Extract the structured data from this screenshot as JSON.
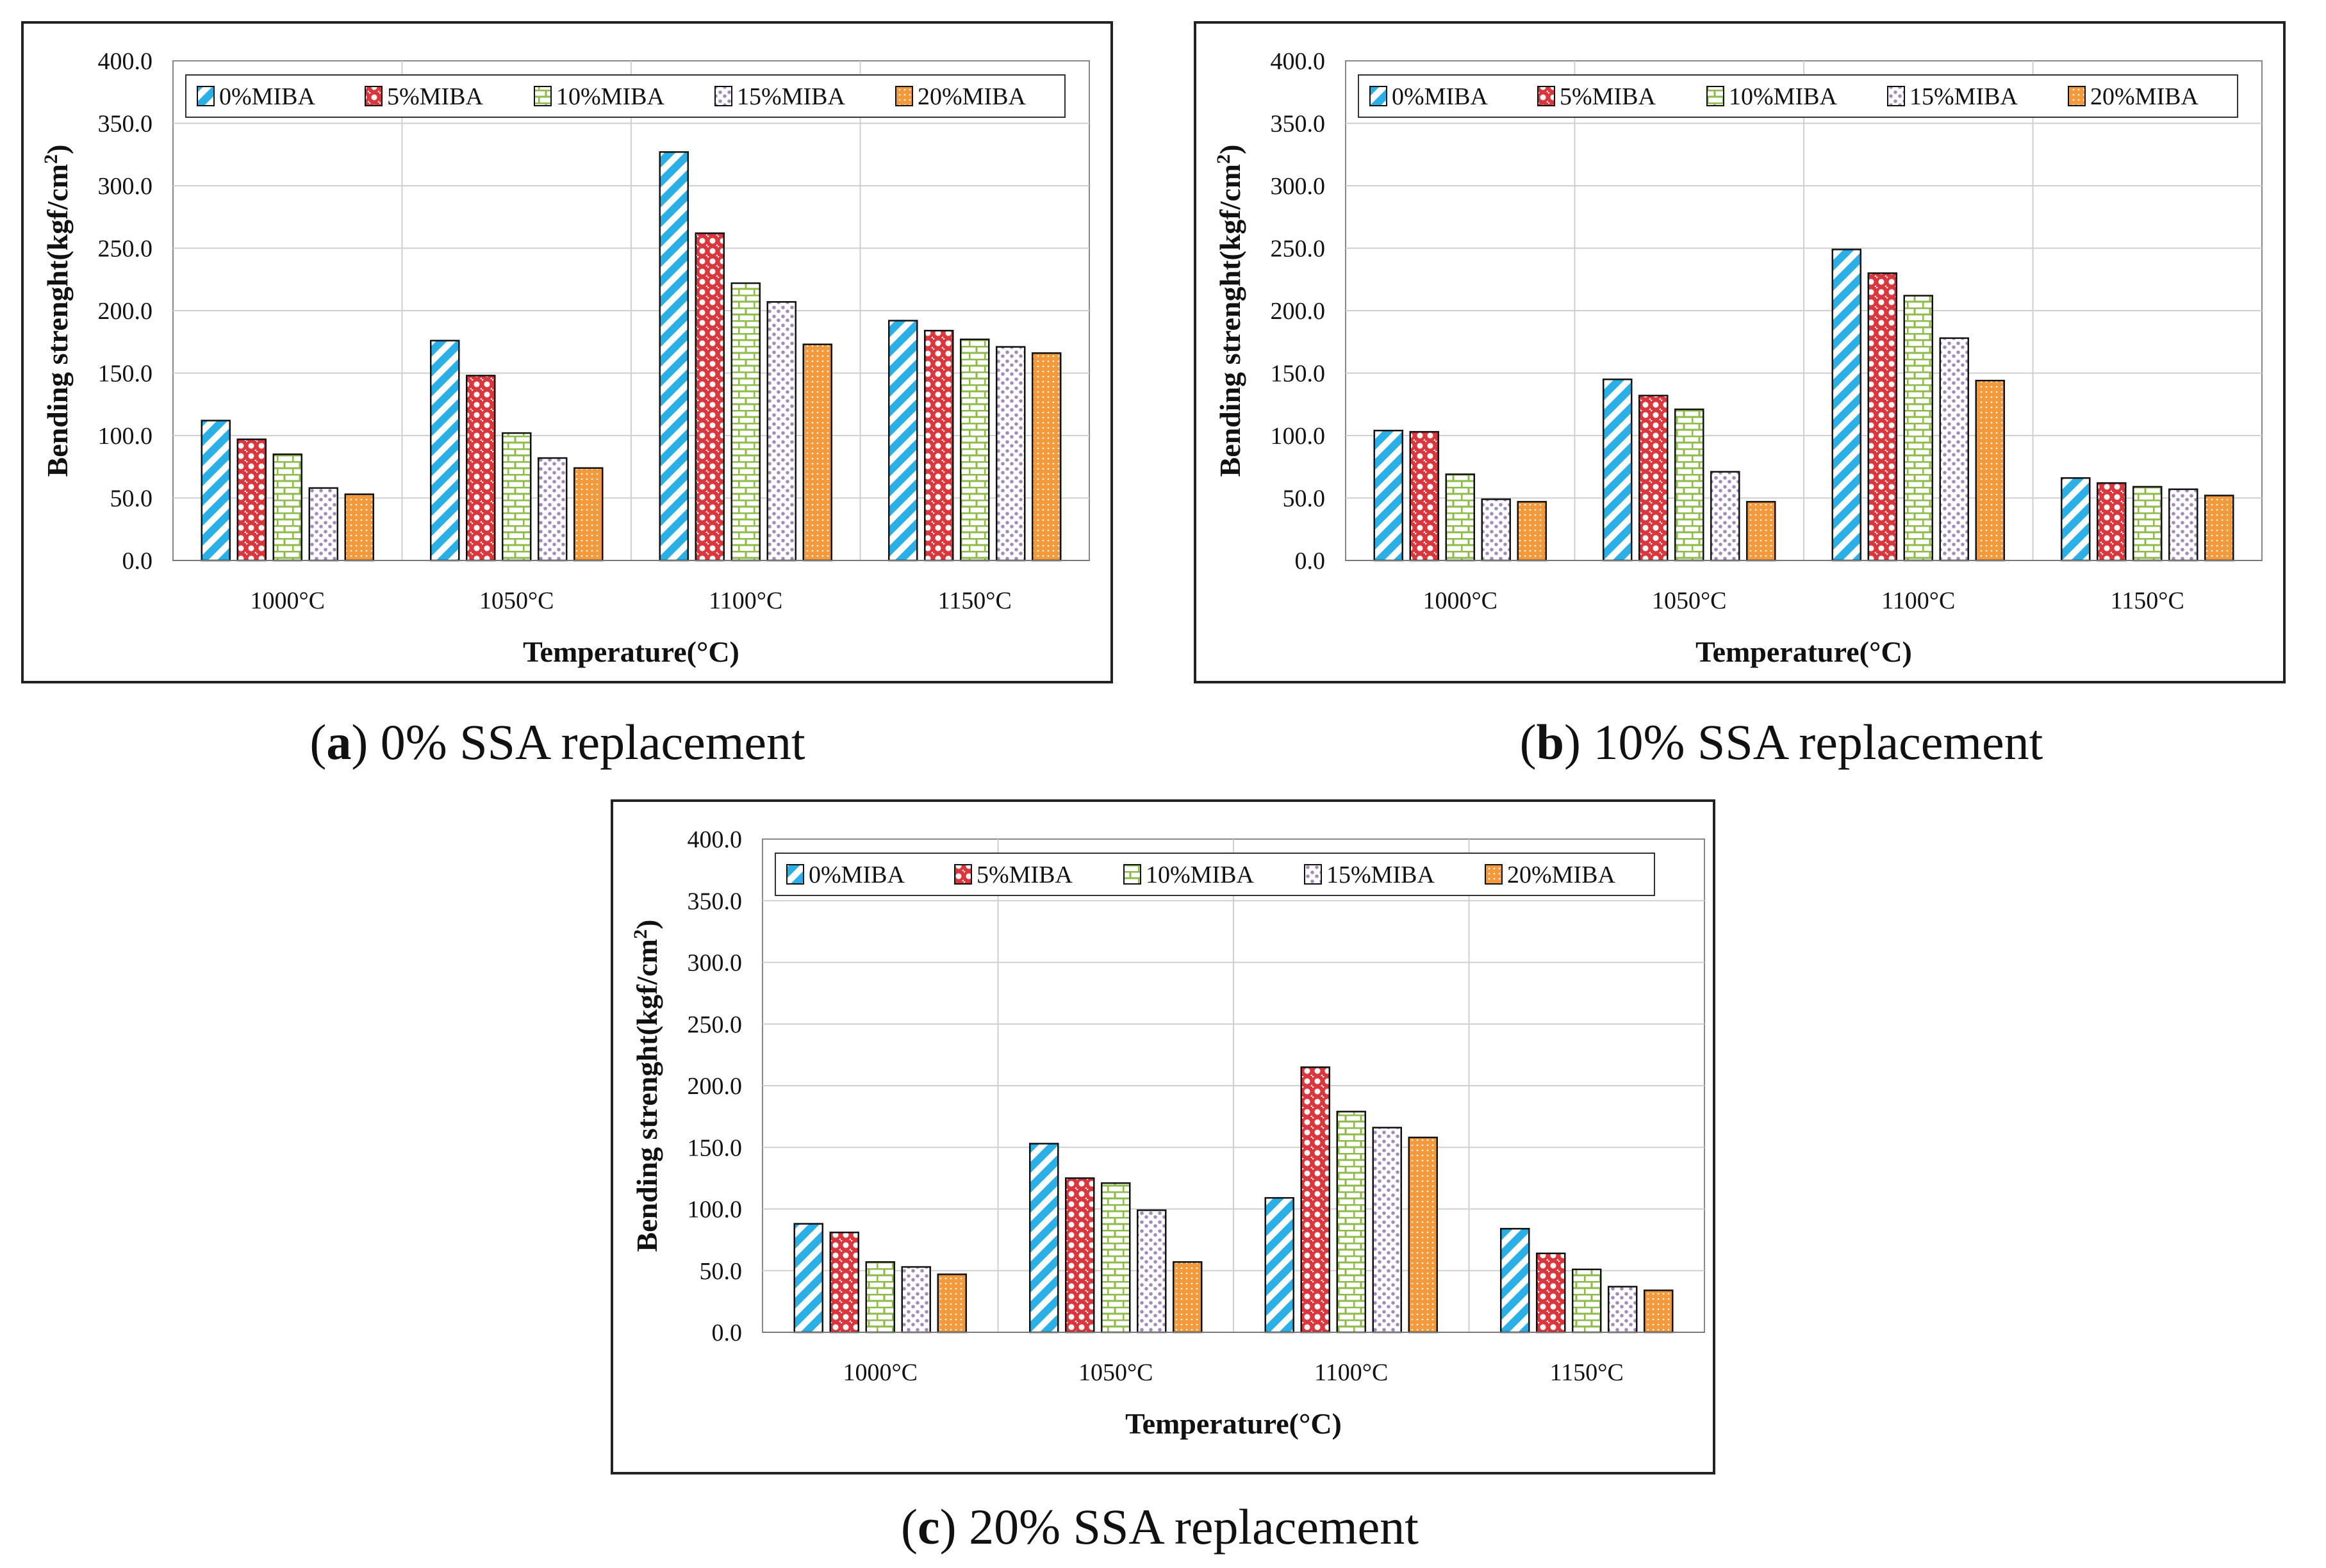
{
  "chart_data": [
    {
      "type": "bar",
      "panel_letter": "a",
      "panel_caption": " 0% SSA replacement",
      "categories": [
        "1000°C",
        "1050°C",
        "1100°C",
        "1150°C"
      ],
      "xlabel": "Temperature(°C)",
      "ylabel": "Bending strenght(kgf/cm²)",
      "ylim": [
        0,
        400
      ],
      "yticks": [
        "0.0",
        "50.0",
        "100.0",
        "150.0",
        "200.0",
        "250.0",
        "300.0",
        "350.0",
        "400.0"
      ],
      "grid": true,
      "legend_position": "top",
      "series": [
        {
          "name": "0%MIBA",
          "values": [
            112,
            176,
            327,
            192
          ]
        },
        {
          "name": "5%MIBA",
          "values": [
            97,
            148,
            262,
            184
          ]
        },
        {
          "name": "10%MIBA",
          "values": [
            85,
            102,
            222,
            177
          ]
        },
        {
          "name": "15%MIBA",
          "values": [
            58,
            82,
            207,
            171
          ]
        },
        {
          "name": "20%MIBA",
          "values": [
            53,
            74,
            173,
            166
          ]
        }
      ]
    },
    {
      "type": "bar",
      "panel_letter": "b",
      "panel_caption": " 10% SSA replacement",
      "categories": [
        "1000°C",
        "1050°C",
        "1100°C",
        "1150°C"
      ],
      "xlabel": "Temperature(°C)",
      "ylabel": "Bending strenght(kgf/cm²)",
      "ylim": [
        0,
        400
      ],
      "yticks": [
        "0.0",
        "50.0",
        "100.0",
        "150.0",
        "200.0",
        "250.0",
        "300.0",
        "350.0",
        "400.0"
      ],
      "grid": true,
      "legend_position": "top",
      "series": [
        {
          "name": "0%MIBA",
          "values": [
            104,
            145,
            249,
            66
          ]
        },
        {
          "name": "5%MIBA",
          "values": [
            103,
            132,
            230,
            62
          ]
        },
        {
          "name": "10%MIBA",
          "values": [
            69,
            121,
            212,
            59
          ]
        },
        {
          "name": "15%MIBA",
          "values": [
            49,
            71,
            178,
            57
          ]
        },
        {
          "name": "20%MIBA",
          "values": [
            47,
            47,
            144,
            52
          ]
        }
      ]
    },
    {
      "type": "bar",
      "panel_letter": "c",
      "panel_caption": " 20% SSA replacement",
      "categories": [
        "1000°C",
        "1050°C",
        "1100°C",
        "1150°C"
      ],
      "xlabel": "Temperature(°C)",
      "ylabel": "Bending strenght(kgf/cm²)",
      "ylim": [
        0,
        400
      ],
      "yticks": [
        "0.0",
        "50.0",
        "100.0",
        "150.0",
        "200.0",
        "250.0",
        "300.0",
        "350.0",
        "400.0"
      ],
      "grid": true,
      "legend_position": "top",
      "series": [
        {
          "name": "0%MIBA",
          "values": [
            88,
            153,
            109,
            84
          ]
        },
        {
          "name": "5%MIBA",
          "values": [
            81,
            125,
            215,
            64
          ]
        },
        {
          "name": "10%MIBA",
          "values": [
            57,
            121,
            179,
            51
          ]
        },
        {
          "name": "15%MIBA",
          "values": [
            53,
            99,
            166,
            37
          ]
        },
        {
          "name": "20%MIBA",
          "values": [
            47,
            57,
            158,
            34
          ]
        }
      ]
    }
  ],
  "series_colors": [
    "#2ab0e6",
    "#d9363e",
    "#8dbb47",
    "#a48ab8",
    "#f59a3c"
  ],
  "series_patterns": [
    "diagonal-stripes",
    "circles",
    "brick",
    "dots",
    "dense-dots"
  ]
}
